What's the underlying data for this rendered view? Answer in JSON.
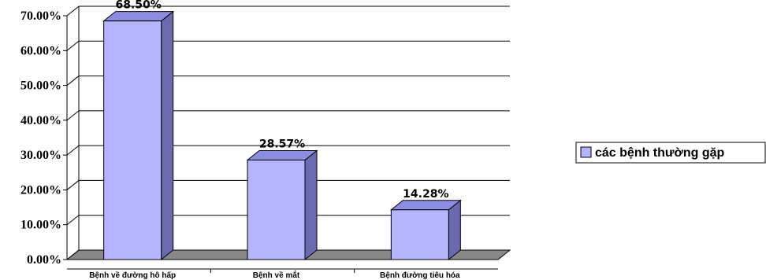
{
  "chart_data": {
    "type": "bar",
    "title": "",
    "xlabel": "",
    "ylabel": "",
    "categories": [
      "Bệnh về đường hô hấp",
      "Bệnh về mắt",
      "Bệnh đường tiêu hóa"
    ],
    "series": [
      {
        "name": "các bệnh thường gặp",
        "values": [
          68.5,
          28.57,
          14.28
        ],
        "data_labels": [
          "68.50%",
          "28.57%",
          "14.28%"
        ],
        "color": "#b4b4ff"
      }
    ],
    "ylim": [
      0,
      70
    ],
    "y_ticks": [
      {
        "value": 0,
        "label": "0.00%"
      },
      {
        "value": 10,
        "label": "10.00%"
      },
      {
        "value": 20,
        "label": "20.00%"
      },
      {
        "value": 30,
        "label": "30.00%"
      },
      {
        "value": 40,
        "label": "40.00%"
      },
      {
        "value": 50,
        "label": "50.00%"
      },
      {
        "value": 60,
        "label": "60.00%"
      },
      {
        "value": 70,
        "label": "70.00%"
      }
    ],
    "grid": true,
    "three_d": true,
    "legend_position": "right",
    "colors": {
      "bar_front": "#b4b4ff",
      "bar_top": "#8c8ce0",
      "bar_side": "#6a6ab0",
      "floor": "#888888",
      "grid": "#000000"
    }
  }
}
